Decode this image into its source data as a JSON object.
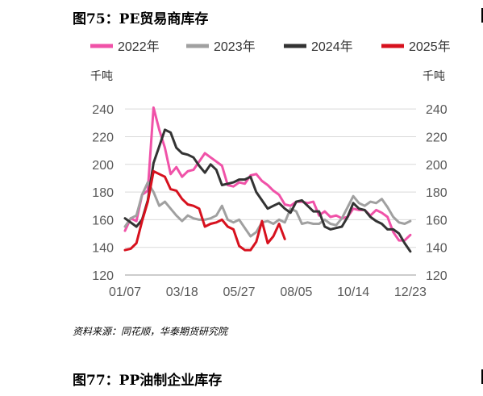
{
  "figure_title": "图75：PE贸易商库存",
  "next_figure_title": "图77：PP油制企业库存",
  "source": "资料来源：同花顺，华泰期货研究院",
  "chart_data": {
    "type": "line",
    "title": "",
    "ylabel_left": "千吨",
    "ylabel_right": "千吨",
    "ylim": [
      120,
      250
    ],
    "yticks": [
      120,
      140,
      160,
      180,
      200,
      220,
      240
    ],
    "x_range": [
      0,
      51
    ],
    "xticks": [
      {
        "label": "01/07",
        "week": 0
      },
      {
        "label": "03/18",
        "week": 10
      },
      {
        "label": "05/27",
        "week": 20
      },
      {
        "label": "08/05",
        "week": 30
      },
      {
        "label": "10/14",
        "week": 40
      },
      {
        "label": "12/23",
        "week": 50
      }
    ],
    "legend_position": "top",
    "grid": {
      "horizontal": true,
      "vertical": false
    },
    "series": [
      {
        "name": "2022年",
        "color": "#f052a8",
        "values": [
          152,
          161,
          159,
          178,
          181,
          241,
          225,
          212,
          193,
          198,
          191,
          195,
          196,
          202,
          208,
          205,
          202,
          199,
          185,
          184,
          187,
          186,
          192,
          193,
          188,
          185,
          181,
          178,
          171,
          170,
          173,
          173,
          172,
          173,
          163,
          166,
          162,
          163,
          161,
          162,
          168,
          167,
          167,
          163,
          167,
          165,
          162,
          151,
          145,
          145,
          149
        ]
      },
      {
        "name": "2023年",
        "color": "#a0a0a0",
        "values": [
          155,
          161,
          163,
          178,
          187,
          180,
          170,
          173,
          168,
          163,
          159,
          163,
          161,
          160,
          160,
          161,
          163,
          170,
          160,
          158,
          160,
          154,
          148,
          151,
          158,
          159,
          157,
          160,
          158,
          168,
          166,
          157,
          158,
          157,
          157,
          160,
          157,
          156,
          161,
          169,
          177,
          172,
          170,
          173,
          172,
          175,
          169,
          162,
          158,
          157,
          159
        ]
      },
      {
        "name": "2024年",
        "color": "#333333",
        "values": [
          161,
          158,
          155,
          160,
          174,
          201,
          213,
          225,
          223,
          212,
          208,
          207,
          205,
          199,
          194,
          200,
          196,
          185,
          186,
          187,
          189,
          189,
          191,
          180,
          174,
          168,
          170,
          172,
          168,
          165,
          173,
          174,
          170,
          166,
          166,
          155,
          153,
          154,
          155,
          162,
          172,
          168,
          167,
          162,
          159,
          157,
          153,
          153,
          150,
          143,
          137
        ]
      },
      {
        "name": "2025年",
        "color": "#d7111e",
        "values": [
          138,
          139,
          143,
          159,
          173,
          195,
          193,
          191,
          182,
          181,
          175,
          171,
          170,
          168,
          155,
          157,
          158,
          160,
          155,
          153,
          141,
          138,
          138,
          144,
          159,
          143,
          148,
          157,
          146
        ]
      }
    ]
  }
}
